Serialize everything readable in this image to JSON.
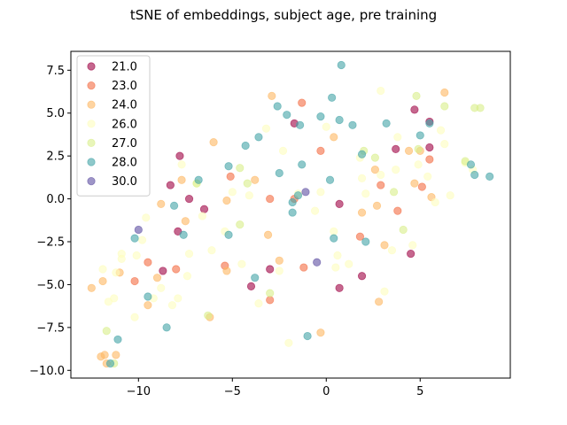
{
  "chart_data": {
    "type": "scatter",
    "title": "tSNE of embeddings, subject age, pre training",
    "xlabel": "",
    "ylabel": "",
    "xlim": [
      -13.6,
      9.8
    ],
    "ylim": [
      -10.45,
      8.6
    ],
    "xticks": [
      -10,
      -5,
      0,
      5
    ],
    "xtick_labels": [
      "−10",
      "−5",
      "0",
      "5"
    ],
    "yticks": [
      -10.0,
      -7.5,
      -5.0,
      -2.5,
      0.0,
      2.5,
      5.0,
      7.5
    ],
    "ytick_labels": [
      "−10.0",
      "−7.5",
      "−5.0",
      "−2.5",
      "0.0",
      "2.5",
      "5.0",
      "7.5"
    ],
    "grid": false,
    "legend_position": "upper-left",
    "marker_alpha": 0.6,
    "series": [
      {
        "name": "21.0",
        "color": "#9e0142",
        "points": [
          [
            -8.3,
            0.8
          ],
          [
            -7.3,
            0.0
          ],
          [
            -7.8,
            2.5
          ],
          [
            -6.5,
            -0.6
          ],
          [
            -7.9,
            -1.9
          ],
          [
            -8.7,
            -4.2
          ],
          [
            -3.0,
            -4.1
          ],
          [
            -4.0,
            -5.1
          ],
          [
            -1.7,
            4.4
          ],
          [
            0.7,
            -0.3
          ],
          [
            0.7,
            -5.2
          ],
          [
            1.9,
            -4.5
          ],
          [
            3.7,
            2.9
          ],
          [
            4.7,
            5.2
          ],
          [
            5.5,
            4.5
          ],
          [
            5.5,
            3.0
          ],
          [
            4.5,
            -3.2
          ]
        ]
      },
      {
        "name": "23.0",
        "color": "#f46d43",
        "points": [
          [
            -9.5,
            -3.7
          ],
          [
            -10.2,
            -4.8
          ],
          [
            -8.0,
            -4.1
          ],
          [
            -5.4,
            -3.9
          ],
          [
            -5.1,
            1.3
          ],
          [
            -3.0,
            -5.9
          ],
          [
            -3.0,
            0.0
          ],
          [
            -1.3,
            5.6
          ],
          [
            -1.7,
            0.0
          ],
          [
            -1.2,
            -4.0
          ],
          [
            -0.3,
            2.8
          ],
          [
            1.8,
            -2.2
          ],
          [
            2.9,
            0.8
          ],
          [
            3.8,
            -0.7
          ],
          [
            5.5,
            2.3
          ],
          [
            5.1,
            0.7
          ]
        ]
      },
      {
        "name": "24.0",
        "color": "#fdb863",
        "points": [
          [
            -12.5,
            -5.2
          ],
          [
            -11.9,
            -4.8
          ],
          [
            -12.0,
            -9.2
          ],
          [
            -11.7,
            -9.6
          ],
          [
            -11.8,
            -9.1
          ],
          [
            -11.2,
            -9.1
          ],
          [
            -11.0,
            -4.3
          ],
          [
            -9.5,
            -6.2
          ],
          [
            -9.0,
            -4.6
          ],
          [
            -8.8,
            -0.3
          ],
          [
            -7.5,
            -1.3
          ],
          [
            -7.7,
            1.1
          ],
          [
            -6.2,
            -6.9
          ],
          [
            -6.0,
            3.3
          ],
          [
            -5.3,
            -0.1
          ],
          [
            -5.3,
            -4.2
          ],
          [
            -3.8,
            1.1
          ],
          [
            -3.1,
            -2.1
          ],
          [
            -2.9,
            6.0
          ],
          [
            -2.5,
            -3.6
          ],
          [
            -0.3,
            -7.8
          ],
          [
            0.4,
            3.6
          ],
          [
            1.9,
            -0.8
          ],
          [
            2.6,
            1.7
          ],
          [
            2.7,
            -0.4
          ],
          [
            3.1,
            -2.7
          ],
          [
            2.8,
            -6.0
          ],
          [
            4.4,
            2.8
          ],
          [
            4.7,
            0.9
          ],
          [
            5.0,
            2.8
          ],
          [
            5.6,
            0.1
          ],
          [
            6.3,
            6.2
          ]
        ]
      },
      {
        "name": "26.0",
        "color": "#fefebe",
        "points": [
          [
            -11.9,
            -4.1
          ],
          [
            -11.6,
            -6.0
          ],
          [
            -11.3,
            -5.8
          ],
          [
            -11.2,
            -4.3
          ],
          [
            -10.9,
            -3.2
          ],
          [
            -10.9,
            -3.5
          ],
          [
            -10.2,
            -6.9
          ],
          [
            -10.1,
            -3.3
          ],
          [
            -9.8,
            -2.4
          ],
          [
            -9.6,
            -1.1
          ],
          [
            -9.2,
            -5.8
          ],
          [
            -8.8,
            -5.2
          ],
          [
            -8.2,
            -6.2
          ],
          [
            -7.9,
            -5.8
          ],
          [
            -7.7,
            2.0
          ],
          [
            -7.3,
            -3.2
          ],
          [
            -7.4,
            -4.5
          ],
          [
            -6.9,
            0.9
          ],
          [
            -6.6,
            -1.0
          ],
          [
            -6.1,
            -3.0
          ],
          [
            -5.4,
            -1.9
          ],
          [
            -5.0,
            0.4
          ],
          [
            -4.5,
            -3.8
          ],
          [
            -4.1,
            0.2
          ],
          [
            -3.6,
            -6.1
          ],
          [
            -3.2,
            4.1
          ],
          [
            -2.5,
            -4.2
          ],
          [
            -2.3,
            2.8
          ],
          [
            -2.0,
            -8.4
          ],
          [
            -1.5,
            0.3
          ],
          [
            -0.6,
            -0.7
          ],
          [
            -0.3,
            0.4
          ],
          [
            0.0,
            4.2
          ],
          [
            0.4,
            -1.9
          ],
          [
            0.5,
            -4.0
          ],
          [
            0.6,
            -3.3
          ],
          [
            1.2,
            -3.8
          ],
          [
            1.8,
            2.4
          ],
          [
            1.9,
            1.2
          ],
          [
            2.1,
            0.3
          ],
          [
            2.9,
            1.4
          ],
          [
            2.9,
            6.3
          ],
          [
            3.1,
            -5.4
          ],
          [
            3.5,
            -3.0
          ],
          [
            3.7,
            1.7
          ],
          [
            3.8,
            3.6
          ],
          [
            4.6,
            -2.7
          ],
          [
            4.9,
            2.0
          ],
          [
            5.4,
            1.3
          ],
          [
            5.8,
            -0.2
          ],
          [
            6.1,
            4.0
          ],
          [
            6.3,
            3.2
          ],
          [
            6.6,
            0.2
          ],
          [
            7.4,
            2.1
          ],
          [
            7.8,
            1.7
          ]
        ]
      },
      {
        "name": "27.0",
        "color": "#d9ef8b",
        "points": [
          [
            -11.7,
            -7.7
          ],
          [
            -11.3,
            -9.6
          ],
          [
            -6.9,
            0.9
          ],
          [
            -6.3,
            -6.8
          ],
          [
            -4.6,
            1.8
          ],
          [
            -4.6,
            -1.5
          ],
          [
            -4.2,
            0.9
          ],
          [
            -3.0,
            -5.5
          ],
          [
            2.0,
            2.8
          ],
          [
            2.6,
            2.4
          ],
          [
            3.6,
            0.4
          ],
          [
            4.1,
            -1.8
          ],
          [
            4.8,
            6.0
          ],
          [
            4.9,
            2.9
          ],
          [
            6.3,
            5.4
          ],
          [
            7.4,
            2.2
          ],
          [
            7.9,
            5.3
          ],
          [
            8.2,
            5.3
          ]
        ]
      },
      {
        "name": "28.0",
        "color": "#42a3a7",
        "points": [
          [
            -11.5,
            -9.6
          ],
          [
            -11.1,
            -8.2
          ],
          [
            -10.2,
            -2.3
          ],
          [
            -9.5,
            -5.7
          ],
          [
            -8.5,
            -7.5
          ],
          [
            -8.1,
            -0.4
          ],
          [
            -7.6,
            -2.1
          ],
          [
            -6.8,
            1.1
          ],
          [
            -5.2,
            -2.1
          ],
          [
            -5.2,
            1.9
          ],
          [
            -4.3,
            3.1
          ],
          [
            -3.8,
            -4.6
          ],
          [
            -3.6,
            3.6
          ],
          [
            -2.6,
            5.4
          ],
          [
            -2.5,
            1.5
          ],
          [
            -2.1,
            4.9
          ],
          [
            -1.8,
            -0.8
          ],
          [
            -1.8,
            -0.2
          ],
          [
            -1.5,
            0.2
          ],
          [
            -1.4,
            4.3
          ],
          [
            -1.0,
            -8.0
          ],
          [
            -1.3,
            2.0
          ],
          [
            -0.3,
            4.8
          ],
          [
            0.3,
            5.9
          ],
          [
            0.2,
            1.1
          ],
          [
            0.4,
            -2.3
          ],
          [
            0.7,
            4.6
          ],
          [
            0.8,
            7.8
          ],
          [
            1.4,
            4.3
          ],
          [
            1.9,
            2.6
          ],
          [
            2.1,
            -2.5
          ],
          [
            3.2,
            4.4
          ],
          [
            5.0,
            3.7
          ],
          [
            5.5,
            4.4
          ],
          [
            7.7,
            2.0
          ],
          [
            7.9,
            1.4
          ],
          [
            8.7,
            1.3
          ]
        ]
      },
      {
        "name": "30.0",
        "color": "#5e4fa2",
        "points": [
          [
            -10.0,
            -1.8
          ],
          [
            -1.1,
            0.4
          ],
          [
            -0.5,
            -3.7
          ]
        ]
      }
    ]
  }
}
